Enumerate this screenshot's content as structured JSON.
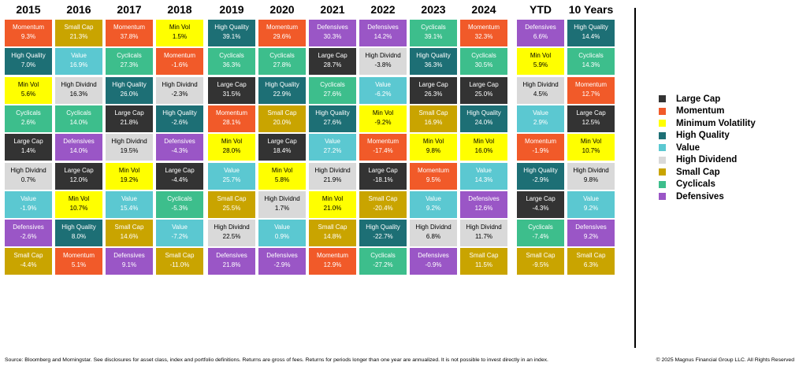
{
  "categories": {
    "Large Cap": {
      "color": "#333333",
      "dark_text": false
    },
    "Momentum": {
      "color": "#F15A29",
      "dark_text": false
    },
    "Min Vol": {
      "color": "#FFFF00",
      "dark_text": true
    },
    "High Quality": {
      "color": "#1D6F75",
      "dark_text": false
    },
    "Value": {
      "color": "#5BC8D1",
      "dark_text": false
    },
    "High Dividnd": {
      "color": "#D9D9D9",
      "dark_text": true
    },
    "Small Cap": {
      "color": "#C9A400",
      "dark_text": false
    },
    "Cyclicals": {
      "color": "#3DBE8C",
      "dark_text": false
    },
    "Defensives": {
      "color": "#9A56C6",
      "dark_text": false
    }
  },
  "chart_data": {
    "type": "table",
    "columns": [
      {
        "year": "2015",
        "cells": [
          {
            "category": "Momentum",
            "value": "9.3%"
          },
          {
            "category": "High Quality",
            "value": "7.0%"
          },
          {
            "category": "Min Vol",
            "value": "5.6%"
          },
          {
            "category": "Cyclicals",
            "value": "2.6%"
          },
          {
            "category": "Large Cap",
            "value": "1.4%"
          },
          {
            "category": "High Dividnd",
            "value": "0.7%"
          },
          {
            "category": "Value",
            "value": "-1.9%"
          },
          {
            "category": "Defensives",
            "value": "-2.6%"
          },
          {
            "category": "Small Cap",
            "value": "-4.4%"
          }
        ]
      },
      {
        "year": "2016",
        "cells": [
          {
            "category": "Small Cap",
            "value": "21.3%"
          },
          {
            "category": "Value",
            "value": "16.9%"
          },
          {
            "category": "High Dividnd",
            "value": "16.3%"
          },
          {
            "category": "Cyclicals",
            "value": "14.0%"
          },
          {
            "category": "Defensives",
            "value": "14.0%"
          },
          {
            "category": "Large Cap",
            "value": "12.0%"
          },
          {
            "category": "Min Vol",
            "value": "10.7%"
          },
          {
            "category": "High Quality",
            "value": "8.0%"
          },
          {
            "category": "Momentum",
            "value": "5.1%"
          }
        ]
      },
      {
        "year": "2017",
        "cells": [
          {
            "category": "Momentum",
            "value": "37.8%"
          },
          {
            "category": "Cyclicals",
            "value": "27.3%"
          },
          {
            "category": "High Quality",
            "value": "26.0%"
          },
          {
            "category": "Large Cap",
            "value": "21.8%"
          },
          {
            "category": "High Dividnd",
            "value": "19.5%"
          },
          {
            "category": "Min Vol",
            "value": "19.2%"
          },
          {
            "category": "Value",
            "value": "15.4%"
          },
          {
            "category": "Small Cap",
            "value": "14.6%"
          },
          {
            "category": "Defensives",
            "value": "9.1%"
          }
        ]
      },
      {
        "year": "2018",
        "cells": [
          {
            "category": "Min Vol",
            "value": "1.5%"
          },
          {
            "category": "Momentum",
            "value": "-1.6%"
          },
          {
            "category": "High Dividnd",
            "value": "-2.3%"
          },
          {
            "category": "High Quality",
            "value": "-2.6%"
          },
          {
            "category": "Defensives",
            "value": "-4.3%"
          },
          {
            "category": "Large Cap",
            "value": "-4.4%"
          },
          {
            "category": "Cyclicals",
            "value": "-5.3%"
          },
          {
            "category": "Value",
            "value": "-7.2%"
          },
          {
            "category": "Small Cap",
            "value": "-11.0%"
          }
        ]
      },
      {
        "year": "2019",
        "cells": [
          {
            "category": "High Quality",
            "value": "39.1%"
          },
          {
            "category": "Cyclicals",
            "value": "36.3%"
          },
          {
            "category": "Large Cap",
            "value": "31.5%"
          },
          {
            "category": "Momentum",
            "value": "28.1%"
          },
          {
            "category": "Min Vol",
            "value": "28.0%"
          },
          {
            "category": "Value",
            "value": "25.7%"
          },
          {
            "category": "Small Cap",
            "value": "25.5%"
          },
          {
            "category": "High Dividnd",
            "value": "22.5%"
          },
          {
            "category": "Defensives",
            "value": "21.8%"
          }
        ]
      },
      {
        "year": "2020",
        "cells": [
          {
            "category": "Momentum",
            "value": "29.6%"
          },
          {
            "category": "Cyclicals",
            "value": "27.8%"
          },
          {
            "category": "High Quality",
            "value": "22.9%"
          },
          {
            "category": "Small Cap",
            "value": "20.0%"
          },
          {
            "category": "Large Cap",
            "value": "18.4%"
          },
          {
            "category": "Min Vol",
            "value": "5.8%"
          },
          {
            "category": "High Dividnd",
            "value": "1.7%"
          },
          {
            "category": "Value",
            "value": "0.9%"
          },
          {
            "category": "Defensives",
            "value": "-2.9%"
          }
        ]
      },
      {
        "year": "2021",
        "cells": [
          {
            "category": "Defensives",
            "value": "30.3%"
          },
          {
            "category": "Large Cap",
            "value": "28.7%"
          },
          {
            "category": "Cyclicals",
            "value": "27.6%"
          },
          {
            "category": "High Quality",
            "value": "27.6%"
          },
          {
            "category": "Value",
            "value": "27.2%"
          },
          {
            "category": "High Dividnd",
            "value": "21.9%"
          },
          {
            "category": "Min Vol",
            "value": "21.0%"
          },
          {
            "category": "Small Cap",
            "value": "14.8%"
          },
          {
            "category": "Momentum",
            "value": "12.9%"
          }
        ]
      },
      {
        "year": "2022",
        "cells": [
          {
            "category": "Defensives",
            "value": "14.2%"
          },
          {
            "category": "High Dividnd",
            "value": "-3.8%"
          },
          {
            "category": "Value",
            "value": "-6.2%"
          },
          {
            "category": "Min Vol",
            "value": "-9.2%"
          },
          {
            "category": "Momentum",
            "value": "-17.4%"
          },
          {
            "category": "Large Cap",
            "value": "-18.1%"
          },
          {
            "category": "Small Cap",
            "value": "-20.4%"
          },
          {
            "category": "High Quality",
            "value": "-22.7%"
          },
          {
            "category": "Cyclicals",
            "value": "-27.2%"
          }
        ]
      },
      {
        "year": "2023",
        "cells": [
          {
            "category": "Cyclicals",
            "value": "39.1%"
          },
          {
            "category": "High Quality",
            "value": "36.3%"
          },
          {
            "category": "Large Cap",
            "value": "26.3%"
          },
          {
            "category": "Small Cap",
            "value": "16.9%"
          },
          {
            "category": "Min Vol",
            "value": "9.8%"
          },
          {
            "category": "Momentum",
            "value": "9.5%"
          },
          {
            "category": "Value",
            "value": "9.2%"
          },
          {
            "category": "High Dividnd",
            "value": "6.8%"
          },
          {
            "category": "Defensives",
            "value": "-0.9%"
          }
        ]
      },
      {
        "year": "2024",
        "cells": [
          {
            "category": "Momentum",
            "value": "32.3%"
          },
          {
            "category": "Cyclicals",
            "value": "30.5%"
          },
          {
            "category": "Large Cap",
            "value": "25.0%"
          },
          {
            "category": "High Quality",
            "value": "24.0%"
          },
          {
            "category": "Min Vol",
            "value": "16.0%"
          },
          {
            "category": "Value",
            "value": "14.3%"
          },
          {
            "category": "Defensives",
            "value": "12.6%"
          },
          {
            "category": "High Dividnd",
            "value": "11.7%"
          },
          {
            "category": "Small Cap",
            "value": "11.5%"
          }
        ]
      },
      {
        "year": "YTD",
        "cells": [
          {
            "category": "Defensives",
            "value": "6.6%"
          },
          {
            "category": "Min Vol",
            "value": "5.9%"
          },
          {
            "category": "High Dividnd",
            "value": "4.5%"
          },
          {
            "category": "Value",
            "value": "2.9%"
          },
          {
            "category": "Momentum",
            "value": "-1.9%"
          },
          {
            "category": "High Quality",
            "value": "-2.9%"
          },
          {
            "category": "Large Cap",
            "value": "-4.3%"
          },
          {
            "category": "Cyclicals",
            "value": "-7.4%"
          },
          {
            "category": "Small Cap",
            "value": "-9.5%"
          }
        ]
      },
      {
        "year": "10 Years",
        "cells": [
          {
            "category": "High Quality",
            "value": "14.4%"
          },
          {
            "category": "Cyclicals",
            "value": "14.3%"
          },
          {
            "category": "Momentum",
            "value": "12.7%"
          },
          {
            "category": "Large Cap",
            "value": "12.5%"
          },
          {
            "category": "Min Vol",
            "value": "10.7%"
          },
          {
            "category": "High Dividnd",
            "value": "9.8%"
          },
          {
            "category": "Value",
            "value": "9.2%"
          },
          {
            "category": "Defensives",
            "value": "9.2%"
          },
          {
            "category": "Small Cap",
            "value": "6.3%"
          }
        ]
      }
    ]
  },
  "legend": [
    {
      "label": "Large Cap",
      "category": "Large Cap"
    },
    {
      "label": "Momentum",
      "category": "Momentum"
    },
    {
      "label": "Minimum Volatility",
      "category": "Min Vol"
    },
    {
      "label": "High Quality",
      "category": "High Quality"
    },
    {
      "label": "Value",
      "category": "Value"
    },
    {
      "label": "High Dividend",
      "category": "High Dividnd"
    },
    {
      "label": "Small Cap",
      "category": "Small Cap"
    },
    {
      "label": "Cyclicals",
      "category": "Cyclicals"
    },
    {
      "label": "Defensives",
      "category": "Defensives"
    }
  ],
  "footer": {
    "source": "Source: Bloomberg and Morningstar. See disclosures for asset class, index and portfolio definitions. Returns are gross of fees. Returns for periods longer than one year are annualized. It is not possible to invest directly in an index.",
    "copyright": "© 2025 Magnus Financial Group LLC. All Rights Reserved"
  }
}
